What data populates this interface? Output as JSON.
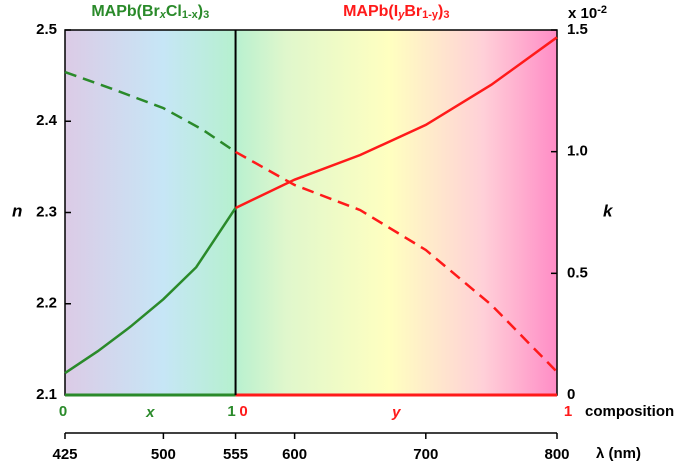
{
  "chart_data": {
    "type": "line",
    "ylabel": "n",
    "y2label": "k",
    "y2_multiplier": [
      "x 10",
      "-2"
    ],
    "xlabel": "λ (nm)",
    "xlim": [
      425,
      800
    ],
    "xticks": [
      425,
      500,
      555,
      600,
      700,
      800
    ],
    "ylim": [
      2.1,
      2.5
    ],
    "yticks": [
      2.1,
      2.2,
      2.3,
      2.4,
      2.5
    ],
    "y2lim": [
      0,
      1.5
    ],
    "y2ticks": [
      0,
      0.5,
      {
        "value": 1,
        "label": "1.0"
      },
      1.5
    ],
    "composition_axis": {
      "label": "composition",
      "segments": [
        {
          "title": [
            "MAPb(Br",
            "x",
            "Cl",
            "1-x",
            ")",
            "3"
          ],
          "variable": "x",
          "ticks": [
            0,
            1
          ],
          "xrange": [
            425,
            555
          ],
          "color": "#2a8a2a"
        },
        {
          "title": [
            "MAPb(I",
            "y",
            "Br",
            "1-y",
            ")",
            "3"
          ],
          "variable": "y",
          "ticks": [
            0,
            1
          ],
          "xrange": [
            555,
            800
          ],
          "color": "#ff1a1a"
        }
      ]
    },
    "series": [
      {
        "color": "#2a8a2a",
        "linestyle": "solid",
        "x": [
          425,
          450,
          475,
          500,
          525,
          555
        ],
        "values": [
          2.124,
          2.148,
          2.175,
          2.205,
          2.24,
          2.305
        ]
      },
      {
        "color": "#ff1a1a",
        "linestyle": "solid",
        "x": [
          555,
          600,
          650,
          700,
          750,
          800
        ],
        "values": [
          2.305,
          2.336,
          2.363,
          2.396,
          2.44,
          2.492
        ]
      },
      {
        "color": "#2a8a2a",
        "linestyle": "dashed",
        "axis": "y2",
        "x": [
          425,
          460,
          500,
          530,
          555
        ],
        "values": [
          1.327,
          1.26,
          1.179,
          1.09,
          0.999
        ]
      },
      {
        "color": "#ff1a1a",
        "linestyle": "dashed",
        "axis": "y2",
        "x": [
          555,
          600,
          650,
          700,
          750,
          800
        ],
        "values": [
          0.999,
          0.863,
          0.76,
          0.596,
          0.37,
          0.095
        ]
      }
    ]
  }
}
